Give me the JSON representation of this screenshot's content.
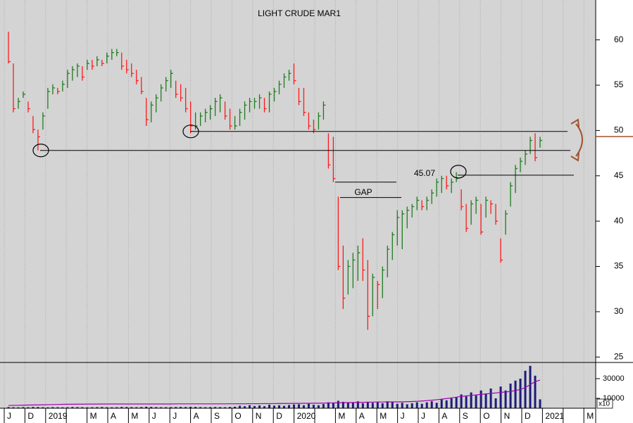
{
  "chart_data": {
    "type": "ohlc",
    "title": "LIGHT CRUDE MAR1",
    "categories": [
      "J",
      "D",
      "2019",
      null,
      "M",
      "A",
      "M",
      "J",
      "J",
      "A",
      "S",
      "O",
      "N",
      "D",
      "2020",
      null,
      "M",
      "A",
      "M",
      "J",
      "J",
      "A",
      "S",
      "O",
      "N",
      "D",
      "2021",
      null,
      "M"
    ],
    "high": [
      60.9,
      57.4,
      53.6,
      54.3,
      53.2,
      51.6,
      50.1,
      52.0,
      54.7,
      55.1,
      54.7,
      55.5,
      56.7,
      57.1,
      57.4,
      57.1,
      57.8,
      57.8,
      58.2,
      57.8,
      58.6,
      59.0,
      59.0,
      58.6,
      57.8,
      57.4,
      56.7,
      55.9,
      53.6,
      53.2,
      54.0,
      55.1,
      55.9,
      56.7,
      55.5,
      55.1,
      54.7,
      53.2,
      52.0,
      52.0,
      52.4,
      52.8,
      53.6,
      54.0,
      53.2,
      52.4,
      51.6,
      52.4,
      53.2,
      53.6,
      53.6,
      54.0,
      53.6,
      54.3,
      54.7,
      55.5,
      56.3,
      56.7,
      57.4,
      54.7,
      54.7,
      52.0,
      51.2,
      52.0,
      53.2,
      49.7,
      49.3,
      42.7,
      37.3,
      35.7,
      36.5,
      37.3,
      38.1,
      35.7,
      34.2,
      33.4,
      35.0,
      37.3,
      38.8,
      41.2,
      41.2,
      41.6,
      41.9,
      42.7,
      42.3,
      42.7,
      43.5,
      44.7,
      45.0,
      45.0,
      44.7,
      45.4,
      43.5,
      41.9,
      42.3,
      42.7,
      41.9,
      42.7,
      42.3,
      41.9,
      38.1,
      41.2,
      44.3,
      46.2,
      47.0,
      47.8,
      49.3,
      49.7,
      49.3
    ],
    "low": [
      57.4,
      52.0,
      52.4,
      53.6,
      52.0,
      49.7,
      47.8,
      50.1,
      52.4,
      54.0,
      54.0,
      54.3,
      54.7,
      55.5,
      55.9,
      55.5,
      56.7,
      56.7,
      57.1,
      57.1,
      57.4,
      57.8,
      58.2,
      56.7,
      56.3,
      55.9,
      55.1,
      54.0,
      50.5,
      50.9,
      52.0,
      53.2,
      54.3,
      54.7,
      53.6,
      53.2,
      52.0,
      49.7,
      50.1,
      50.5,
      50.9,
      51.2,
      51.6,
      52.0,
      51.2,
      50.1,
      50.1,
      50.5,
      51.2,
      52.0,
      52.4,
      52.4,
      52.0,
      52.0,
      53.2,
      54.0,
      54.7,
      55.5,
      55.1,
      52.8,
      51.6,
      50.1,
      49.7,
      50.1,
      51.2,
      45.8,
      44.3,
      34.6,
      30.3,
      31.9,
      32.6,
      33.4,
      33.4,
      28.0,
      29.5,
      30.3,
      31.5,
      33.8,
      35.7,
      37.3,
      36.9,
      39.2,
      40.4,
      41.2,
      41.2,
      41.2,
      41.9,
      42.7,
      43.1,
      43.5,
      43.1,
      44.3,
      41.2,
      38.8,
      39.6,
      40.8,
      38.5,
      40.4,
      40.8,
      39.6,
      35.4,
      38.5,
      41.6,
      43.1,
      45.4,
      46.2,
      47.4,
      46.6,
      48.1
    ],
    "close": [
      57.6,
      52.4,
      53.2,
      54.0,
      52.4,
      50.1,
      49.3,
      51.6,
      54.3,
      54.7,
      54.3,
      55.1,
      56.3,
      56.7,
      57.1,
      55.9,
      57.4,
      57.1,
      57.8,
      57.4,
      58.2,
      58.6,
      58.6,
      57.1,
      56.7,
      56.3,
      55.5,
      54.3,
      51.2,
      52.8,
      53.6,
      54.7,
      55.5,
      56.3,
      54.0,
      53.6,
      52.4,
      50.5,
      50.5,
      51.6,
      52.0,
      52.4,
      53.2,
      53.6,
      51.6,
      50.5,
      50.5,
      52.0,
      52.8,
      53.2,
      53.2,
      53.6,
      52.4,
      54.0,
      54.3,
      55.1,
      55.9,
      56.3,
      55.5,
      53.2,
      52.0,
      50.5,
      50.1,
      51.6,
      52.8,
      46.2,
      44.7,
      35.0,
      31.5,
      35.0,
      35.7,
      36.5,
      34.6,
      29.5,
      33.8,
      33.0,
      34.6,
      36.9,
      38.5,
      40.4,
      40.8,
      41.2,
      41.6,
      42.3,
      41.6,
      42.3,
      43.1,
      44.3,
      44.7,
      43.9,
      44.3,
      44.7,
      41.6,
      39.2,
      41.9,
      42.3,
      38.8,
      42.3,
      41.9,
      40.0,
      35.7,
      40.8,
      43.9,
      45.8,
      46.6,
      47.4,
      48.9,
      47.0,
      48.9
    ],
    "up_color": "#1e7b1e",
    "down_color": "#ff1a1a",
    "ylim": [
      24.4,
      64.4
    ],
    "yticks": [
      25,
      30,
      35,
      40,
      45,
      50,
      55,
      60
    ],
    "levels": [
      {
        "value": 49.9
      },
      {
        "value": 47.8
      },
      {
        "value": 45.07,
        "label": "45.07"
      },
      {
        "value": 44.3
      },
      {
        "value": 42.6
      }
    ],
    "annotation": "GAP",
    "volume": {
      "values": [
        1200,
        1000,
        900,
        1100,
        1000,
        1300,
        1200,
        1000,
        900,
        1100,
        1000,
        900,
        1000,
        1200,
        1100,
        1000,
        900,
        1000,
        1100,
        1200,
        1000,
        900,
        1000,
        1300,
        1200,
        1100,
        1000,
        1200,
        1500,
        1300,
        1100,
        1000,
        1000,
        1100,
        1200,
        1300,
        1200,
        1400,
        1300,
        1100,
        1000,
        1100,
        1200,
        1100,
        1000,
        1300,
        1500,
        2500,
        2000,
        3000,
        2200,
        2800,
        2000,
        3500,
        2600,
        3000,
        2400,
        3200,
        3800,
        4000,
        3000,
        4500,
        3500,
        3000,
        4200,
        6000,
        5000,
        7500,
        6500,
        5500,
        6000,
        7000,
        5000,
        6500,
        5500,
        6000,
        5000,
        7000,
        6500,
        4500,
        5500,
        4000,
        5000,
        6000,
        4500,
        6000,
        7000,
        5500,
        9000,
        8000,
        10000,
        11000,
        14000,
        12000,
        16000,
        13000,
        18000,
        15000,
        20000,
        10000,
        22000,
        18000,
        25000,
        28000,
        30000,
        38000,
        43000,
        33000,
        9000
      ],
      "color": "#1c1c7a",
      "average": {
        "color": "#a000b0",
        "values": [
          2800,
          2900,
          3000,
          3100,
          3200,
          3300,
          3400,
          3500,
          3600,
          3700,
          3800,
          3900,
          4000,
          4000,
          4100,
          4100,
          4200,
          4200,
          4200,
          4300,
          4300,
          4300,
          4300,
          4300,
          4300,
          4300,
          4300,
          4300,
          4300,
          4300,
          4300,
          4300,
          4300,
          4300,
          4400,
          4400,
          4400,
          4400,
          4400,
          4400,
          4400,
          4400,
          4400,
          4400,
          4400,
          4500,
          4500,
          4500,
          4500,
          4600,
          4600,
          4600,
          4700,
          4700,
          4700,
          4800,
          4800,
          4800,
          4900,
          4900,
          5000,
          5000,
          5100,
          5100,
          5200,
          5300,
          5400,
          5500,
          5600,
          5700,
          5800,
          5900,
          6000,
          6100,
          6200,
          6300,
          6300,
          6400,
          6400,
          6400,
          6500,
          6600,
          6800,
          7000,
          7300,
          7700,
          8100,
          8600,
          9200,
          9800,
          10500,
          11200,
          12000,
          12500,
          13000,
          13500,
          14000,
          14500,
          15000,
          15500,
          16000,
          16500,
          17000,
          18000,
          19000,
          21000,
          24000,
          27000,
          28500
        ]
      },
      "ylim": [
        0,
        46400
      ],
      "yticks": [
        10000,
        30000
      ],
      "multiplier": "x10"
    }
  }
}
